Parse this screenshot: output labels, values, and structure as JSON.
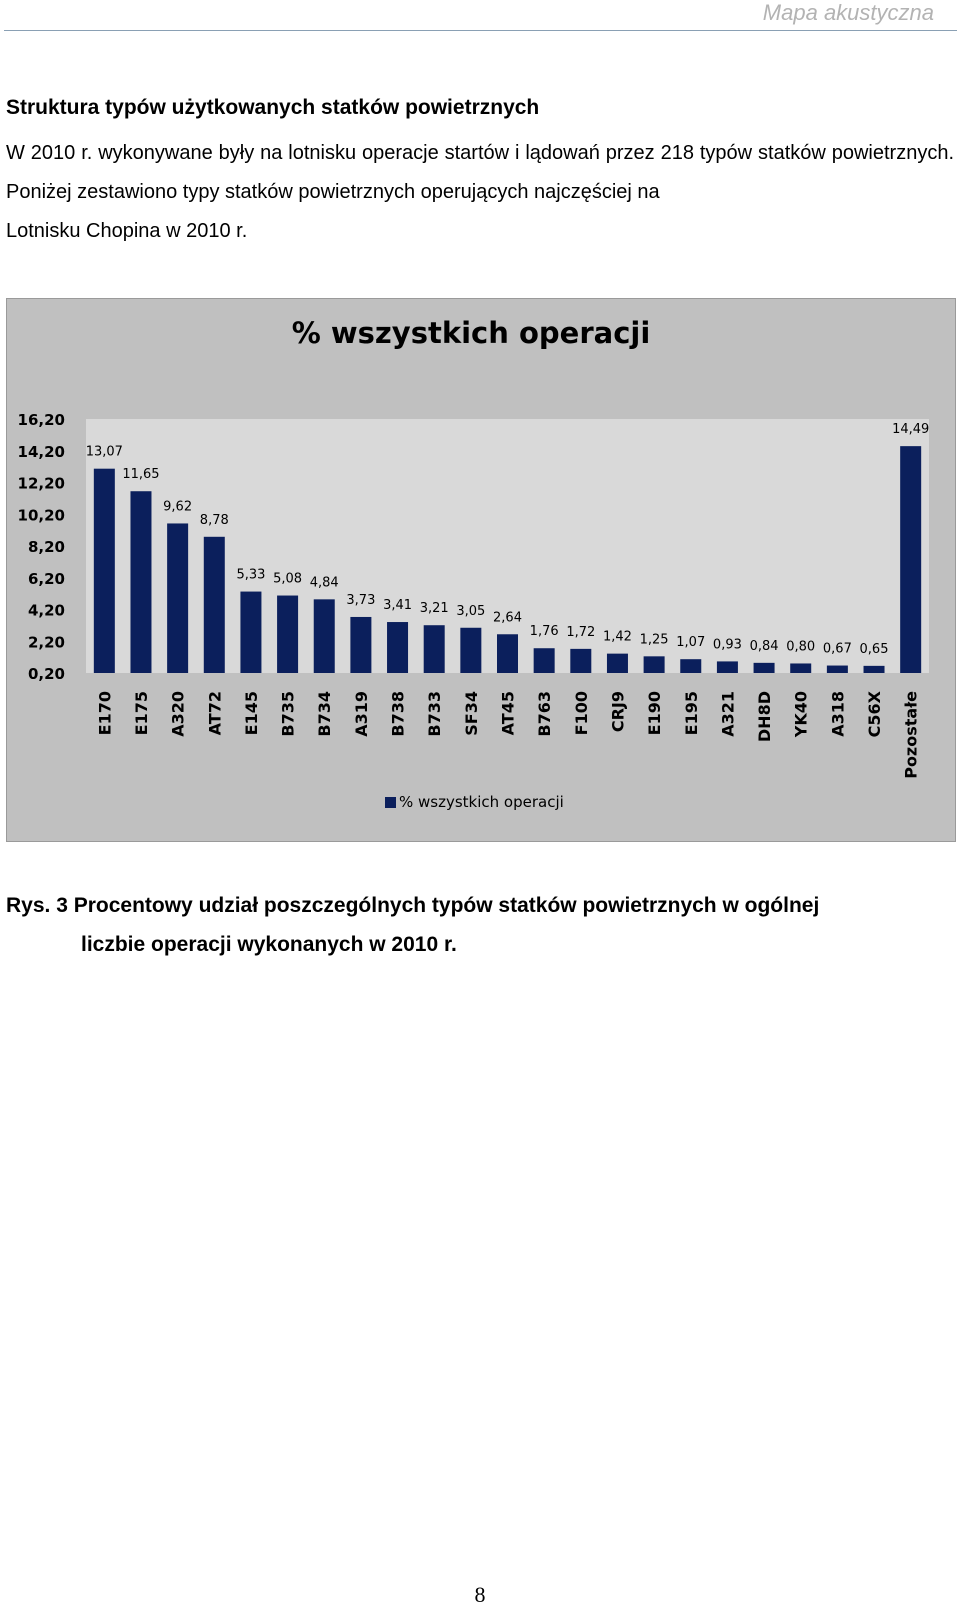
{
  "header": {
    "running_title": "Mapa akustyczna"
  },
  "section": {
    "title": "Struktura typów użytkowanych statków powietrznych",
    "paragraph_line1": "W 2010 r. wykonywane były na lotnisku operacje startów i lądowań przez 218 typów statków powietrznych. Poniżej zestawiono typy statków powietrznych operujących najczęściej na",
    "paragraph_line2": "Lotnisku Chopina w 2010 r."
  },
  "chart_data": {
    "type": "bar",
    "title": "% wszystkich operacji",
    "categories": [
      "E170",
      "E175",
      "A320",
      "AT72",
      "E145",
      "B735",
      "B734",
      "A319",
      "B738",
      "B733",
      "SF34",
      "AT45",
      "B763",
      "F100",
      "CRJ9",
      "E190",
      "E195",
      "A321",
      "DH8D",
      "YK40",
      "A318",
      "C56X",
      "Pozostałe"
    ],
    "series": [
      {
        "name": "% wszystkich operacji",
        "values": [
          13.07,
          11.65,
          9.62,
          8.78,
          5.33,
          5.08,
          4.84,
          3.73,
          3.41,
          3.21,
          3.05,
          2.64,
          1.76,
          1.72,
          1.42,
          1.25,
          1.07,
          0.93,
          0.84,
          0.8,
          0.67,
          0.65,
          14.49
        ],
        "value_labels": [
          "13,07",
          "11,65",
          "9,62",
          "8,78",
          "5,33",
          "5,08",
          "4,84",
          "3,73",
          "3,41",
          "3,21",
          "3,05",
          "2,64",
          "1,76",
          "1,72",
          "1,42",
          "1,25",
          "1,07",
          "0,93",
          "0,84",
          "0,80",
          "0,67",
          "0,65",
          "14,49"
        ]
      }
    ],
    "y_ticks": [
      0.2,
      2.2,
      4.2,
      6.2,
      8.2,
      10.2,
      12.2,
      14.2,
      16.2
    ],
    "y_tick_labels": [
      "0,20",
      "2,20",
      "4,20",
      "6,20",
      "8,20",
      "10,20",
      "12,20",
      "14,20",
      "16,20"
    ],
    "ylim": [
      0.2,
      16.2
    ],
    "xlabel": "",
    "ylabel": "",
    "grid": false,
    "legend_position": "bottom",
    "colors": {
      "bar": "#0b1f5c",
      "plot_area": "#d9d9d9",
      "chart_area": "#c0c0c0"
    }
  },
  "caption": {
    "line1": "Rys. 3  Procentowy udział poszczególnych typów statków powietrznych  w ogólnej",
    "line2": "liczbie operacji wykonanych w 2010 r."
  },
  "footer": {
    "page_number": "8"
  }
}
